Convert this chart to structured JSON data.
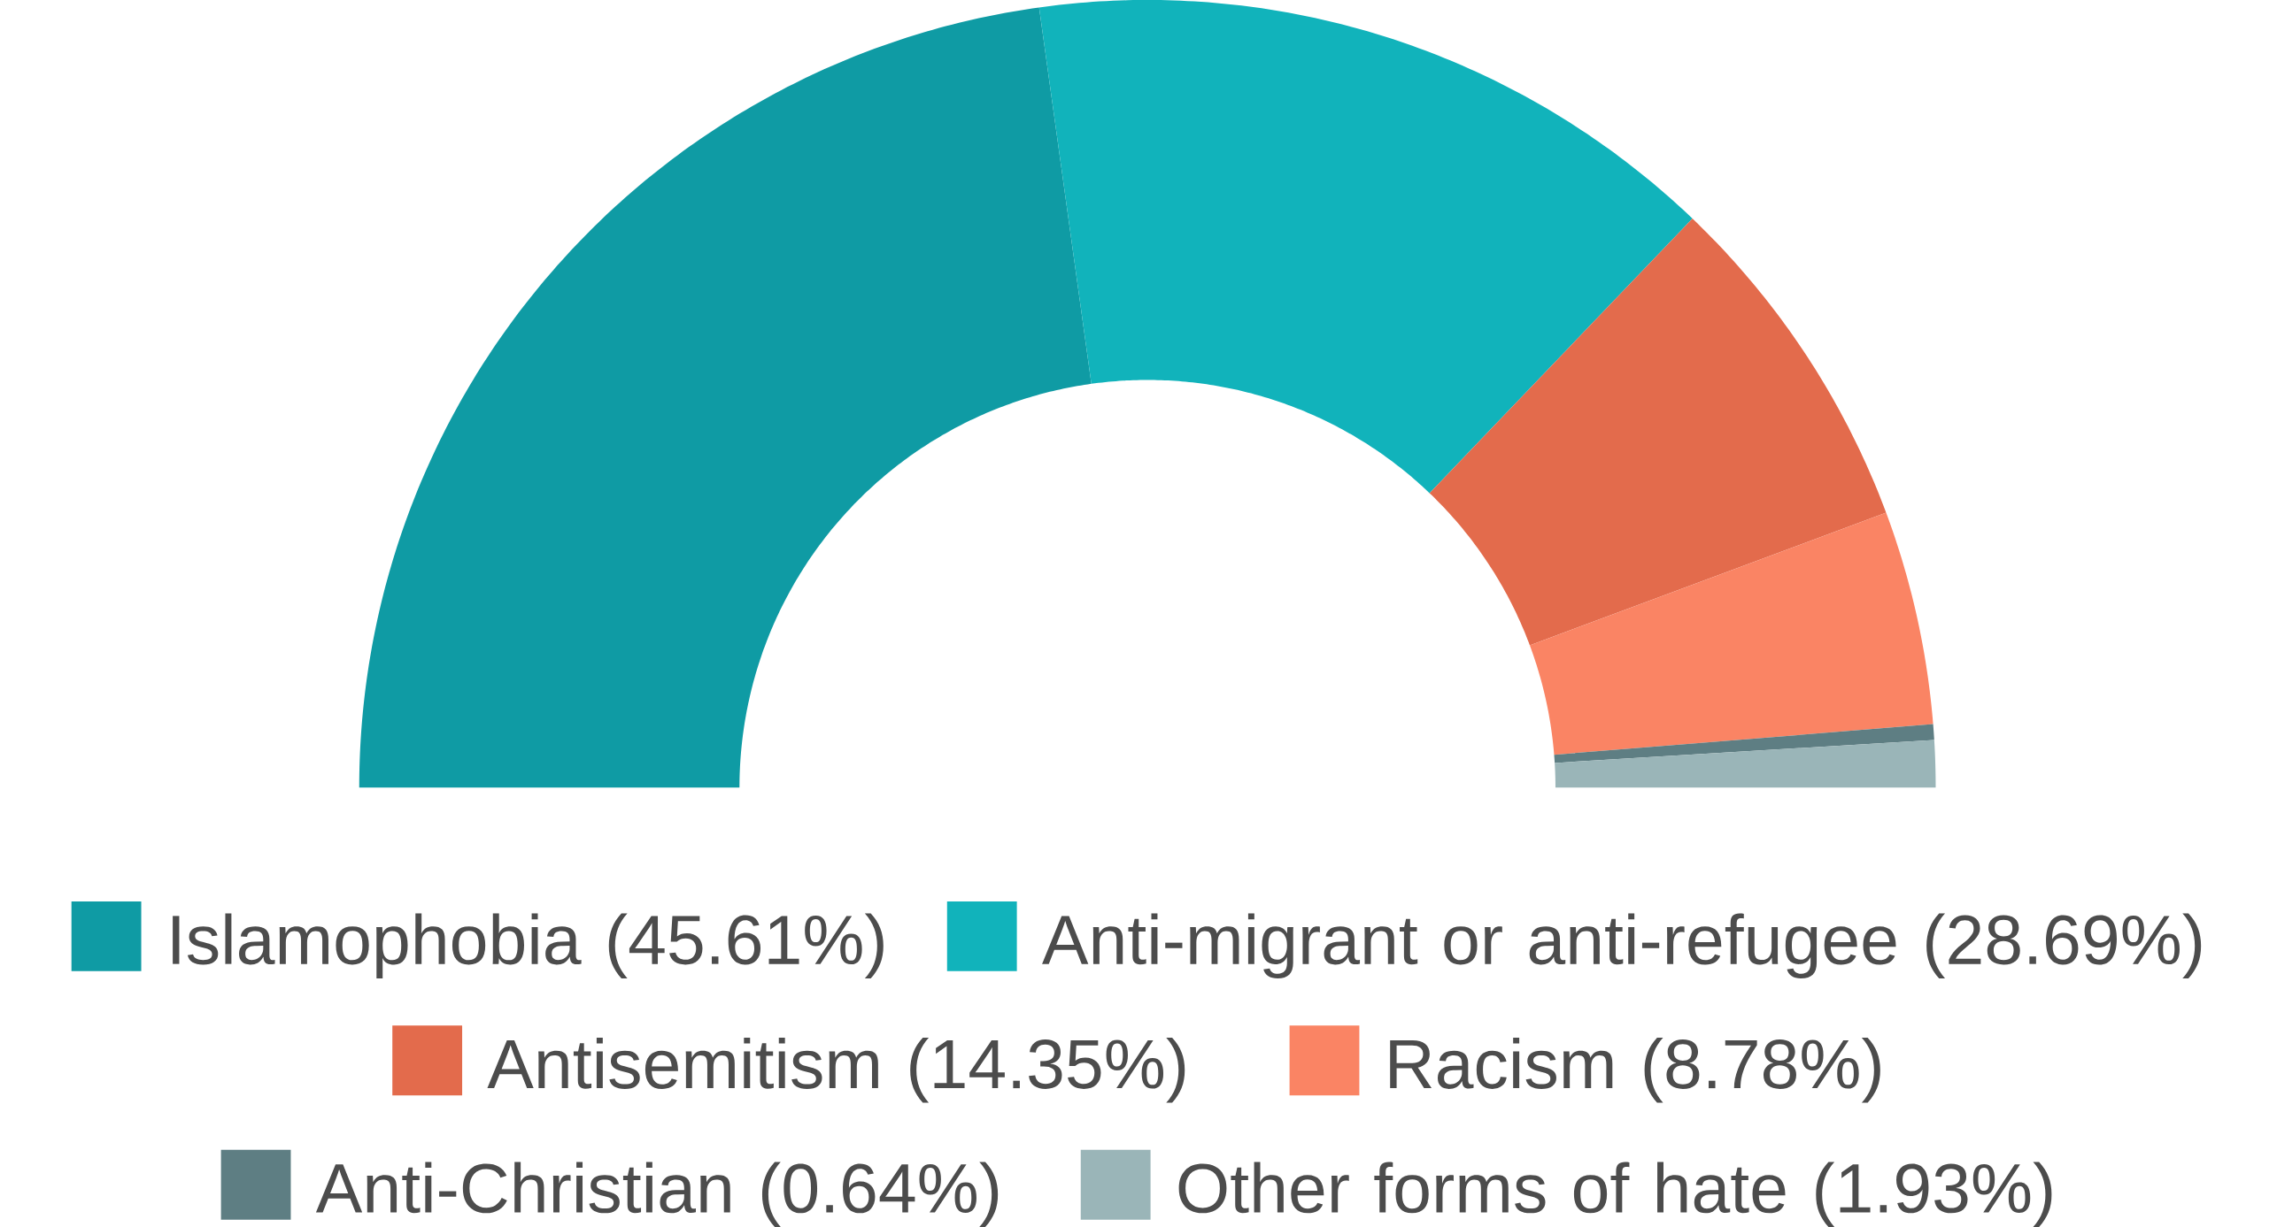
{
  "chart_data": {
    "type": "donut",
    "categories": [
      "Islamophobia (45.61%)",
      "Anti-migrant or anti-refugee (28.69%)",
      "Antisemitism (14.35%)",
      "Racism (8.78%)",
      "Anti-Christian (0.64%)",
      "Other forms of hate (1.93%)"
    ],
    "values": [
      45.61,
      28.69,
      14.35,
      8.78,
      0.64,
      1.93
    ],
    "colors": [
      "#0f9ba4",
      "#11b3bb",
      "#e36b4c",
      "#fa8464",
      "#5e7e83",
      "#9ab5b8"
    ],
    "legend": "bottom"
  }
}
